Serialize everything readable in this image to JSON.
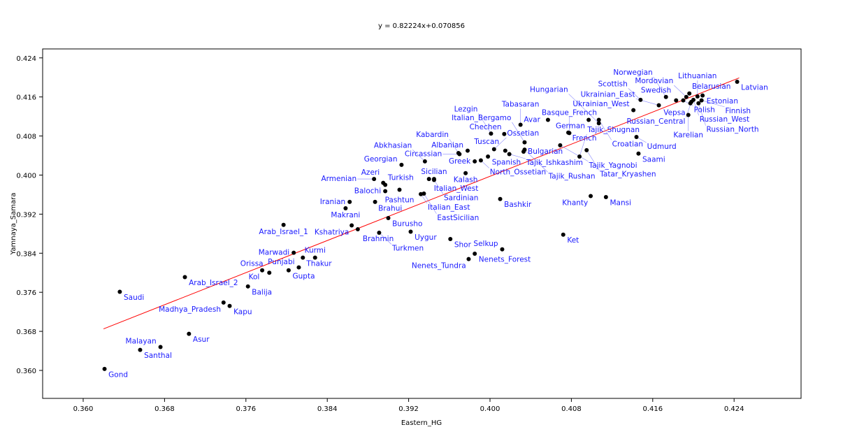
{
  "chart_data": {
    "type": "scatter",
    "title": "y = 0.82224x+0.070856",
    "xlabel": "Eastern_HG",
    "ylabel": "Yamnaya_Samara",
    "xlim": [
      0.3545,
      0.4285
    ],
    "ylim": [
      0.3552,
      0.4258
    ],
    "xticks": [
      "0.360",
      "0.368",
      "0.376",
      "0.384",
      "0.392",
      "0.400",
      "0.408",
      "0.416",
      "0.424"
    ],
    "yticks": [
      "0.360",
      "0.368",
      "0.376",
      "0.384",
      "0.392",
      "0.400",
      "0.408",
      "0.416",
      "0.424"
    ],
    "grid": false,
    "point_color": "#000000",
    "label_color": "#1a1aff",
    "trendline": {
      "slope": 0.82224,
      "intercept": 0.070856,
      "x_range": [
        0.362,
        0.4245
      ],
      "color": "#ff0000"
    },
    "points": [
      {
        "name": "Gond",
        "x": 0.3621,
        "y": 0.3603
      },
      {
        "name": "Santhal",
        "x": 0.3656,
        "y": 0.3642
      },
      {
        "name": "Malayan",
        "x": 0.3676,
        "y": 0.3648
      },
      {
        "name": "Asur",
        "x": 0.3704,
        "y": 0.3675
      },
      {
        "name": "Saudi",
        "x": 0.3636,
        "y": 0.3761
      },
      {
        "name": "Madhya_Pradesh",
        "x": 0.3738,
        "y": 0.3739
      },
      {
        "name": "Kapu",
        "x": 0.3744,
        "y": 0.3732
      },
      {
        "name": "Arab_Israel_2",
        "x": 0.37,
        "y": 0.3791
      },
      {
        "name": "Balija",
        "x": 0.3762,
        "y": 0.3772
      },
      {
        "name": "Kol",
        "x": 0.3776,
        "y": 0.3805
      },
      {
        "name": "Orissa",
        "x": 0.3783,
        "y": 0.38
      },
      {
        "name": "Gupta",
        "x": 0.3802,
        "y": 0.3805
      },
      {
        "name": "Punjabi",
        "x": 0.3812,
        "y": 0.3811
      },
      {
        "name": "Thakur",
        "x": 0.3816,
        "y": 0.3831
      },
      {
        "name": "Kurmi",
        "x": 0.3828,
        "y": 0.3831
      },
      {
        "name": "Marwadi",
        "x": 0.3807,
        "y": 0.3841
      },
      {
        "name": "Arab_Israel_1",
        "x": 0.3797,
        "y": 0.3898
      },
      {
        "name": "Kshatriya",
        "x": 0.3864,
        "y": 0.3897
      },
      {
        "name": "Brahmin",
        "x": 0.387,
        "y": 0.3889
      },
      {
        "name": "Turkmen",
        "x": 0.3891,
        "y": 0.3882
      },
      {
        "name": "Burusho",
        "x": 0.39,
        "y": 0.3912
      },
      {
        "name": "Uygur",
        "x": 0.3922,
        "y": 0.3884
      },
      {
        "name": "Iranian",
        "x": 0.3862,
        "y": 0.3945
      },
      {
        "name": "Makrani",
        "x": 0.3858,
        "y": 0.3932
      },
      {
        "name": "Brahui",
        "x": 0.3887,
        "y": 0.3945
      },
      {
        "name": "Balochi",
        "x": 0.3897,
        "y": 0.3967
      },
      {
        "name": "Turkish",
        "x": 0.3897,
        "y": 0.398
      },
      {
        "name": "Armenian",
        "x": 0.3886,
        "y": 0.3992
      },
      {
        "name": "Azeri",
        "x": 0.3895,
        "y": 0.3984
      },
      {
        "name": "Georgian",
        "x": 0.3913,
        "y": 0.4021
      },
      {
        "name": "Abkhasian",
        "x": 0.3936,
        "y": 0.4028
      },
      {
        "name": "Italian_West",
        "x": 0.394,
        "y": 0.3992
      },
      {
        "name": "Sicilian",
        "x": 0.3945,
        "y": 0.3992
      },
      {
        "name": "Sardinian",
        "x": 0.3945,
        "y": 0.399
      },
      {
        "name": "Italian_East",
        "x": 0.3932,
        "y": 0.3961
      },
      {
        "name": "EastSicilian",
        "x": 0.3935,
        "y": 0.3962
      },
      {
        "name": "Pashtun",
        "x": 0.3911,
        "y": 0.397
      },
      {
        "name": "Kabardin",
        "x": 0.3969,
        "y": 0.4045
      },
      {
        "name": "Circassian",
        "x": 0.397,
        "y": 0.4043
      },
      {
        "name": "Albanian",
        "x": 0.3978,
        "y": 0.405
      },
      {
        "name": "North_Ossetian",
        "x": 0.3991,
        "y": 0.403
      },
      {
        "name": "Greek",
        "x": 0.3985,
        "y": 0.4028
      },
      {
        "name": "Kalash",
        "x": 0.3976,
        "y": 0.4004
      },
      {
        "name": "Spanish",
        "x": 0.3998,
        "y": 0.4038
      },
      {
        "name": "Ossetian",
        "x": 0.4004,
        "y": 0.4053
      },
      {
        "name": "Tuscan",
        "x": 0.4015,
        "y": 0.405
      },
      {
        "name": "Lezgin",
        "x": 0.4001,
        "y": 0.4085
      },
      {
        "name": "Chechen",
        "x": 0.4014,
        "y": 0.4084
      },
      {
        "name": "Tabasaran",
        "x": 0.403,
        "y": 0.4103
      },
      {
        "name": "Avar",
        "x": 0.4057,
        "y": 0.4113
      },
      {
        "name": "Italian_Bergamo",
        "x": 0.4034,
        "y": 0.4067
      },
      {
        "name": "Tajik_Ishkashim",
        "x": 0.4019,
        "y": 0.4043
      },
      {
        "name": "Bulgarian",
        "x": 0.4033,
        "y": 0.4048
      },
      {
        "name": "Tajik_Rushan",
        "x": 0.4034,
        "y": 0.4052
      },
      {
        "name": "Tajik_Yagnobi",
        "x": 0.4069,
        "y": 0.4061
      },
      {
        "name": "Tatar_Kryashen",
        "x": 0.4095,
        "y": 0.4051
      },
      {
        "name": "Tajik_Shugnan",
        "x": 0.4088,
        "y": 0.4038
      },
      {
        "name": "French",
        "x": 0.4077,
        "y": 0.4087
      },
      {
        "name": "Basque_French",
        "x": 0.4078,
        "y": 0.4086
      },
      {
        "name": "German",
        "x": 0.4097,
        "y": 0.4113
      },
      {
        "name": "Croatian",
        "x": 0.4107,
        "y": 0.4113
      },
      {
        "name": "Hungarian",
        "x": 0.4107,
        "y": 0.4106
      },
      {
        "name": "Ukrainian_West",
        "x": 0.4141,
        "y": 0.4133
      },
      {
        "name": "Scottish",
        "x": 0.4148,
        "y": 0.4154
      },
      {
        "name": "Ukrainian_East",
        "x": 0.4166,
        "y": 0.4143
      },
      {
        "name": "Norwegian",
        "x": 0.4173,
        "y": 0.416
      },
      {
        "name": "Swedish",
        "x": 0.4183,
        "y": 0.4153
      },
      {
        "name": "Polish",
        "x": 0.419,
        "y": 0.4153
      },
      {
        "name": "Belarusian",
        "x": 0.4196,
        "y": 0.4167
      },
      {
        "name": "Estonian",
        "x": 0.4209,
        "y": 0.4163
      },
      {
        "name": "Lithuanian",
        "x": 0.4204,
        "y": 0.4161
      },
      {
        "name": "Russian_West",
        "x": 0.42,
        "y": 0.4154
      },
      {
        "name": "Finnish",
        "x": 0.4208,
        "y": 0.4153
      },
      {
        "name": "Russian_Central",
        "x": 0.4198,
        "y": 0.415
      },
      {
        "name": "Vepsa",
        "x": 0.4197,
        "y": 0.4147
      },
      {
        "name": "Russian_North",
        "x": 0.4205,
        "y": 0.4147
      },
      {
        "name": "Mordovian",
        "x": 0.4193,
        "y": 0.416
      },
      {
        "name": "Karelian",
        "x": 0.4195,
        "y": 0.4123
      },
      {
        "name": "Latvian",
        "x": 0.4243,
        "y": 0.4191
      },
      {
        "name": "Udmurd",
        "x": 0.4144,
        "y": 0.4078
      },
      {
        "name": "Saami",
        "x": 0.4146,
        "y": 0.4044
      },
      {
        "name": "Khanty",
        "x": 0.4099,
        "y": 0.3957
      },
      {
        "name": "Mansi",
        "x": 0.4114,
        "y": 0.3955
      },
      {
        "name": "Bashkir",
        "x": 0.401,
        "y": 0.3951
      },
      {
        "name": "Ket",
        "x": 0.4072,
        "y": 0.3878
      },
      {
        "name": "Selkup",
        "x": 0.4012,
        "y": 0.3848
      },
      {
        "name": "Nenets_Forest",
        "x": 0.3985,
        "y": 0.3839
      },
      {
        "name": "Nenets_Tundra",
        "x": 0.3979,
        "y": 0.3828
      },
      {
        "name": "Shor",
        "x": 0.3961,
        "y": 0.3869
      }
    ]
  }
}
